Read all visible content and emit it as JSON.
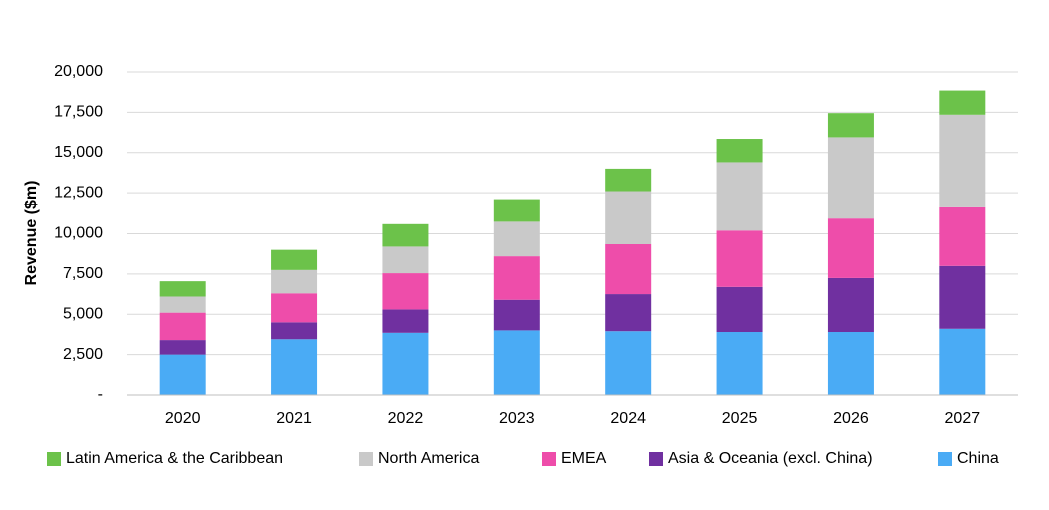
{
  "chart_data": {
    "type": "bar",
    "stacked": true,
    "title": "",
    "xlabel": "",
    "ylabel": "Revenue ($m)",
    "ylim": [
      0,
      20000
    ],
    "yticks": [
      0,
      2500,
      5000,
      7500,
      10000,
      12500,
      15000,
      17500,
      20000
    ],
    "ytick_labels": [
      "-",
      "2,500",
      "5,000",
      "7,500",
      "10,000",
      "12,500",
      "15,000",
      "17,500",
      "20,000"
    ],
    "grid": true,
    "legend_position": "bottom",
    "categories": [
      "2020",
      "2021",
      "2022",
      "2023",
      "2024",
      "2025",
      "2026",
      "2027"
    ],
    "series": [
      {
        "name": "China",
        "color": "#4AABF5",
        "values": [
          2500,
          3450,
          3850,
          4000,
          3950,
          3900,
          3900,
          4100
        ]
      },
      {
        "name": "Asia & Oceania (excl. China)",
        "color": "#7030A0",
        "values": [
          900,
          1050,
          1450,
          1900,
          2300,
          2800,
          3350,
          3900
        ]
      },
      {
        "name": "EMEA",
        "color": "#EE4DAA",
        "values": [
          1700,
          1800,
          2250,
          2700,
          3100,
          3500,
          3700,
          3650
        ]
      },
      {
        "name": "North America",
        "color": "#C9C9C9",
        "values": [
          1000,
          1450,
          1650,
          2150,
          3250,
          4200,
          5000,
          5700
        ]
      },
      {
        "name": "Latin America & the Caribbean",
        "color": "#6CC24A",
        "values": [
          950,
          1250,
          1400,
          1350,
          1400,
          1450,
          1500,
          1500
        ]
      }
    ],
    "legend_order": [
      "Latin America & the Caribbean",
      "North America",
      "EMEA",
      "Asia & Oceania (excl. China)",
      "China"
    ]
  }
}
